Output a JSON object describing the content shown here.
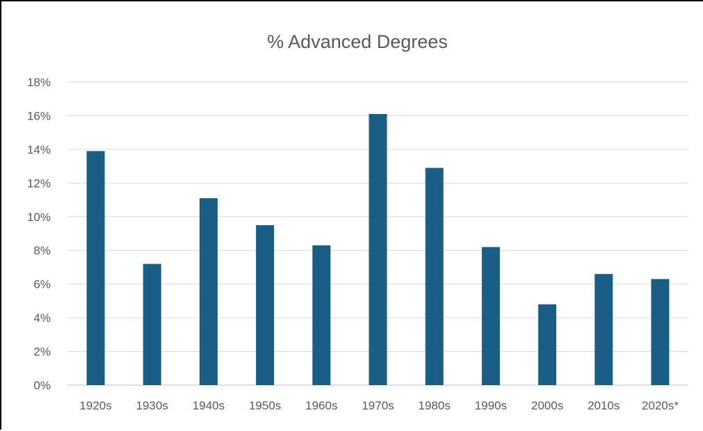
{
  "chart_data": {
    "type": "bar",
    "title": "% Advanced Degrees",
    "xlabel": "",
    "ylabel": "",
    "categories": [
      "1920s",
      "1930s",
      "1940s",
      "1950s",
      "1960s",
      "1970s",
      "1980s",
      "1990s",
      "2000s",
      "2010s",
      "2020s*"
    ],
    "values": [
      13.9,
      7.2,
      11.1,
      9.5,
      8.3,
      16.1,
      12.9,
      8.2,
      4.8,
      6.6,
      6.3
    ],
    "ylim": [
      0,
      18
    ],
    "yticks": [
      0,
      2,
      4,
      6,
      8,
      10,
      12,
      14,
      16,
      18
    ],
    "ytick_labels": [
      "0%",
      "2%",
      "4%",
      "6%",
      "8%",
      "10%",
      "12%",
      "14%",
      "16%",
      "18%"
    ],
    "grid": true,
    "legend": "none",
    "bar_color": "#1a5e85"
  }
}
